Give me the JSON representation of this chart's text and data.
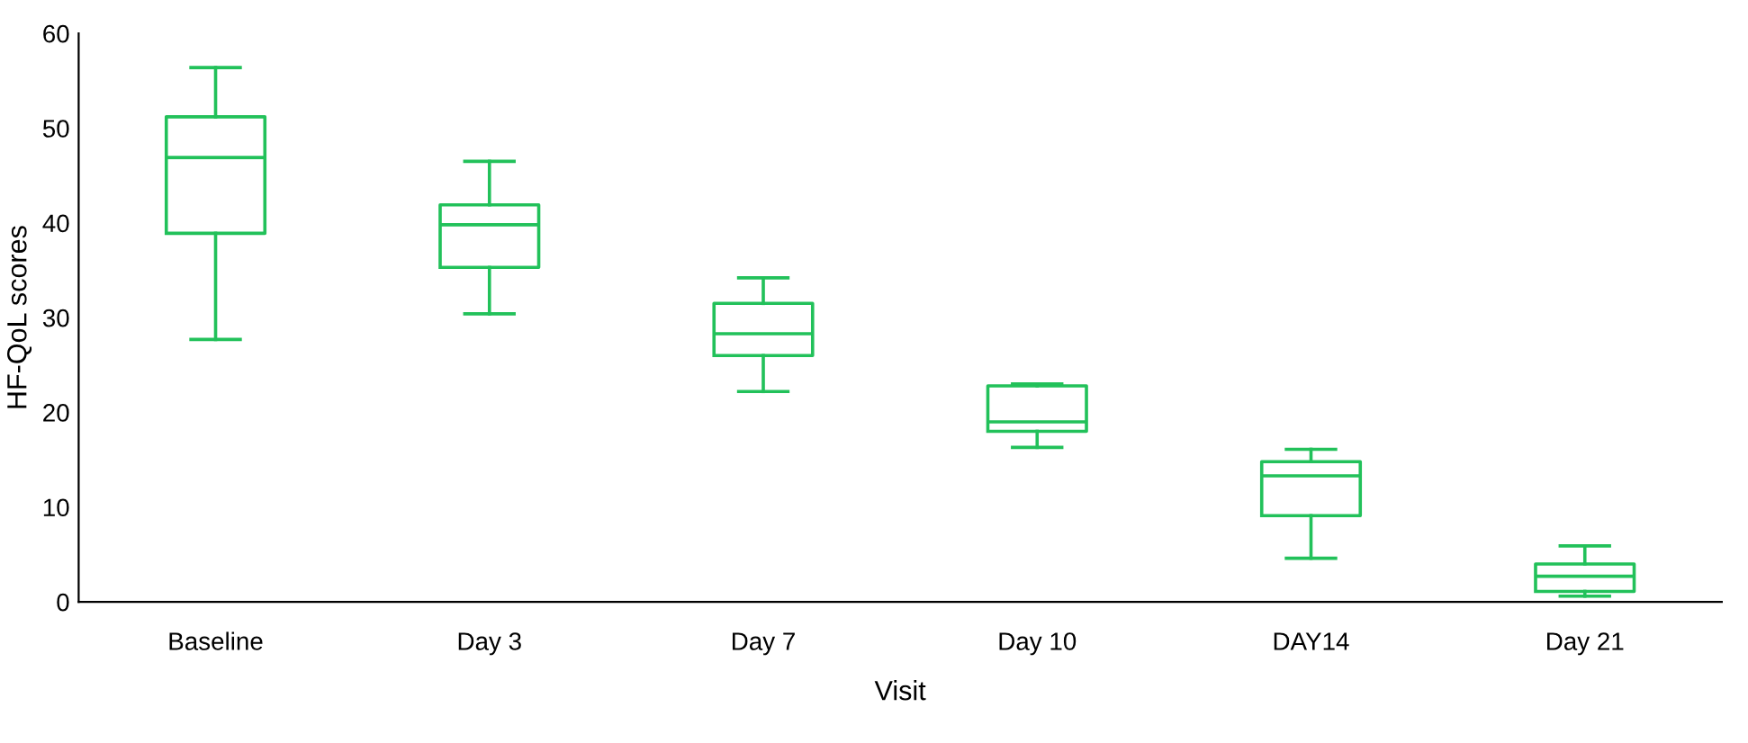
{
  "chart_data": {
    "type": "box",
    "xlabel": "Visit",
    "ylabel": "HF-QoL scores",
    "categories": [
      "Baseline",
      "Day 3",
      "Day 7",
      "Day 10",
      "DAY14",
      "Day 21"
    ],
    "color": "#22c15a",
    "boxes": [
      {
        "low": 27.7,
        "q1": 38.9,
        "median": 46.9,
        "q3": 51.2,
        "high": 56.4
      },
      {
        "low": 30.4,
        "q1": 35.3,
        "median": 39.8,
        "q3": 41.9,
        "high": 46.5
      },
      {
        "low": 22.2,
        "q1": 26.0,
        "median": 28.3,
        "q3": 31.5,
        "high": 34.2
      },
      {
        "low": 16.3,
        "q1": 18.0,
        "median": 19.0,
        "q3": 22.8,
        "high": 23.0
      },
      {
        "low": 4.6,
        "q1": 9.1,
        "median": 13.3,
        "q3": 14.8,
        "high": 16.1
      },
      {
        "low": 0.6,
        "q1": 1.1,
        "median": 2.7,
        "q3": 4.0,
        "high": 5.9
      }
    ],
    "ylim": [
      0,
      60
    ],
    "yticks": [
      0,
      10,
      20,
      30,
      40,
      50,
      60
    ],
    "grid": false
  }
}
